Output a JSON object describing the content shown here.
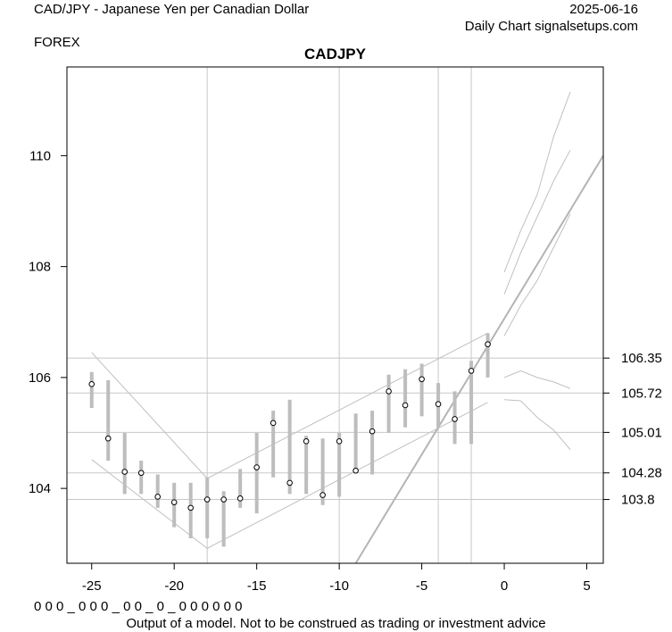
{
  "header": {
    "title": "CAD/JPY - Japanese Yen per Canadian Dollar",
    "date": "2025-06-16",
    "source": "Daily Chart signalsetups.com",
    "market": "FOREX"
  },
  "footer": {
    "codes": "0 0 0 _ 0 0 0 _ 0 0 _ 0 _ 0 0 0 0 0 0",
    "disclaimer": "Output of a model. Not to be construed as trading or investment advice"
  },
  "chart_data": {
    "type": "line",
    "title": "CADJPY",
    "xlabel": "",
    "ylabel": "",
    "xlim": [
      -26.5,
      6
    ],
    "ylim": [
      102.65,
      111.6
    ],
    "x_ticks": [
      -25,
      -20,
      -15,
      -10,
      -5,
      0,
      5
    ],
    "x_tick_labels": [
      "-25",
      "-20",
      "-15",
      "-10",
      "-5",
      "0",
      "5"
    ],
    "y_ticks": [
      104,
      106,
      108,
      110
    ],
    "y_tick_labels": [
      "104",
      "106",
      "108",
      "110"
    ],
    "right_levels": [
      106.35,
      105.72,
      105.01,
      104.28,
      103.8
    ],
    "right_level_labels": [
      "106.35",
      "105.72",
      "105.01",
      "104.28",
      "103.8"
    ],
    "vertical_lines": [
      -18,
      -10,
      -4,
      -2
    ],
    "grid": false,
    "colors": {
      "bars": "#bdbdbd",
      "lines": "#c0c0c0",
      "points": "#000000"
    },
    "bars": [
      {
        "x": -25,
        "low": 105.45,
        "high": 106.1,
        "close": 105.88
      },
      {
        "x": -24,
        "low": 104.5,
        "high": 105.95,
        "close": 104.9
      },
      {
        "x": -23,
        "low": 103.9,
        "high": 105.0,
        "close": 104.3
      },
      {
        "x": -22,
        "low": 103.9,
        "high": 104.5,
        "close": 104.28
      },
      {
        "x": -21,
        "low": 103.65,
        "high": 104.25,
        "close": 103.85
      },
      {
        "x": -20,
        "low": 103.3,
        "high": 104.1,
        "close": 103.75
      },
      {
        "x": -19,
        "low": 103.1,
        "high": 104.1,
        "close": 103.65
      },
      {
        "x": -18,
        "low": 103.1,
        "high": 104.2,
        "close": 103.8
      },
      {
        "x": -17,
        "low": 102.95,
        "high": 103.95,
        "close": 103.8
      },
      {
        "x": -16,
        "low": 103.65,
        "high": 104.35,
        "close": 103.82
      },
      {
        "x": -15,
        "low": 103.55,
        "high": 105.0,
        "close": 104.38
      },
      {
        "x": -14,
        "low": 104.2,
        "high": 105.4,
        "close": 105.18
      },
      {
        "x": -13,
        "low": 103.9,
        "high": 105.6,
        "close": 104.1
      },
      {
        "x": -12,
        "low": 103.9,
        "high": 104.95,
        "close": 104.85
      },
      {
        "x": -11,
        "low": 103.7,
        "high": 104.9,
        "close": 103.88
      },
      {
        "x": -10,
        "low": 103.85,
        "high": 105.0,
        "close": 104.85
      },
      {
        "x": -9,
        "low": 104.3,
        "high": 105.35,
        "close": 104.32
      },
      {
        "x": -8,
        "low": 104.25,
        "high": 105.4,
        "close": 105.03
      },
      {
        "x": -7,
        "low": 105.0,
        "high": 106.05,
        "close": 105.75
      },
      {
        "x": -6,
        "low": 105.1,
        "high": 106.15,
        "close": 105.5
      },
      {
        "x": -5,
        "low": 105.3,
        "high": 106.25,
        "close": 105.97
      },
      {
        "x": -4,
        "low": 105.1,
        "high": 105.9,
        "close": 105.52
      },
      {
        "x": -3,
        "low": 104.8,
        "high": 105.75,
        "close": 105.25
      },
      {
        "x": -2,
        "low": 104.8,
        "high": 106.3,
        "close": 106.12
      },
      {
        "x": -1,
        "low": 106.0,
        "high": 106.8,
        "close": 106.6
      }
    ],
    "lines": [
      {
        "points": [
          [
            -25,
            104.52
          ],
          [
            -18,
            102.92
          ],
          [
            -1,
            105.55
          ]
        ],
        "width": 1
      },
      {
        "points": [
          [
            -25,
            106.45
          ],
          [
            -18,
            104.18
          ],
          [
            -1,
            106.8
          ]
        ],
        "width": 1
      },
      {
        "points": [
          [
            -9,
            102.65
          ],
          [
            6,
            110.0
          ]
        ],
        "width": 2
      },
      {
        "points": [
          [
            0,
            107.9
          ],
          [
            1,
            108.65
          ],
          [
            2,
            109.3
          ],
          [
            3,
            110.35
          ],
          [
            4,
            111.15
          ]
        ],
        "width": 1
      },
      {
        "points": [
          [
            0,
            107.5
          ],
          [
            1,
            108.25
          ],
          [
            2,
            108.9
          ],
          [
            3,
            109.55
          ],
          [
            4,
            110.1
          ]
        ],
        "width": 1
      },
      {
        "points": [
          [
            0,
            106.75
          ],
          [
            1,
            107.3
          ],
          [
            2,
            107.75
          ],
          [
            3,
            108.35
          ],
          [
            4,
            108.95
          ]
        ],
        "width": 1
      },
      {
        "points": [
          [
            0,
            106.0
          ],
          [
            1,
            106.12
          ],
          [
            2,
            106.0
          ],
          [
            3,
            105.92
          ],
          [
            4,
            105.8
          ]
        ],
        "width": 1
      },
      {
        "points": [
          [
            0,
            105.6
          ],
          [
            1,
            105.58
          ],
          [
            2,
            105.28
          ],
          [
            3,
            105.05
          ],
          [
            4,
            104.7
          ]
        ],
        "width": 1
      }
    ]
  }
}
